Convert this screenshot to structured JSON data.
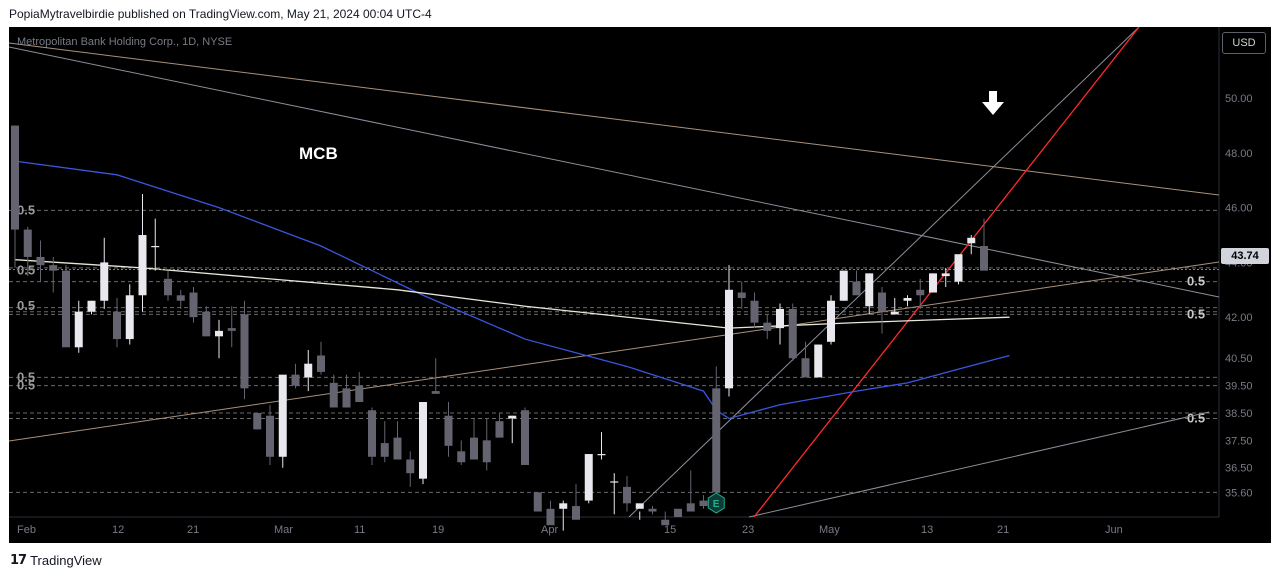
{
  "header": {
    "published": "PopiaMytravelbirdie published on TradingView.com, May 21, 2024 00:04 UTC-4"
  },
  "footer": {
    "logo_mark": "17",
    "brand": "TradingView"
  },
  "toolbar": {
    "currency": "USD"
  },
  "annotations": {
    "ticker_text": "MCB",
    "current_price_tag": "43.74"
  },
  "colors": {
    "background": "#000000",
    "up": "#e8e8ee",
    "down": "#646470",
    "ma_blue": "#3a56e0",
    "ma_white": "#e8e6da",
    "trend_red": "#ff2a2a",
    "trend_tan": "#a8927c",
    "price_line": "#ff4a4a"
  },
  "chart_data": {
    "type": "candlestick",
    "title": "Metropolitan Bank Holding Corp., 1D, NYSE",
    "ylim": [
      34.7,
      52.6
    ],
    "y_ticks": [
      "50.00",
      "48.00",
      "46.00",
      "44.00",
      "42.00",
      "40.50",
      "39.50",
      "38.50",
      "37.50",
      "36.50",
      "35.60"
    ],
    "x_ticks": [
      "Feb",
      "12",
      "21",
      "Mar",
      "11",
      "19",
      "Apr",
      "15",
      "23",
      "May",
      "13",
      "21",
      "Jun"
    ],
    "current_price": 43.74,
    "fib_labels": [
      {
        "text": "0.5",
        "price": 45.9,
        "side": "left"
      },
      {
        "text": "0.5",
        "price": 43.7,
        "side": "left"
      },
      {
        "text": "0.5",
        "price": 42.4,
        "side": "left"
      },
      {
        "text": "0.5",
        "price": 39.8,
        "side": "left"
      },
      {
        "text": "0.5",
        "price": 39.5,
        "side": "left"
      },
      {
        "text": "0.5",
        "price": 43.3,
        "side": "right"
      },
      {
        "text": "0.5",
        "price": 42.1,
        "side": "right"
      },
      {
        "text": "0.5",
        "price": 38.3,
        "side": "right"
      }
    ],
    "series": [
      {
        "name": "",
        "type": "candles",
        "values": [
          [
            49.0,
            49.0,
            43.8,
            45.2
          ],
          [
            45.2,
            45.3,
            43.5,
            44.2
          ],
          [
            44.2,
            44.8,
            43.3,
            43.9
          ],
          [
            43.9,
            44.2,
            42.9,
            43.7
          ],
          [
            43.7,
            43.9,
            40.9,
            40.9
          ],
          [
            40.9,
            42.6,
            40.7,
            42.2
          ],
          [
            42.2,
            42.6,
            42.1,
            42.6
          ],
          [
            42.6,
            44.9,
            42.3,
            44.0
          ],
          [
            42.2,
            42.7,
            40.9,
            41.2
          ],
          [
            41.2,
            43.2,
            41.0,
            42.8
          ],
          [
            42.8,
            46.5,
            42.2,
            45.0
          ],
          [
            44.6,
            45.6,
            43.7,
            44.6
          ],
          [
            43.4,
            43.7,
            42.6,
            42.8
          ],
          [
            42.8,
            43.0,
            42.3,
            42.6
          ],
          [
            42.9,
            43.1,
            41.8,
            42.0
          ],
          [
            42.2,
            42.4,
            41.3,
            41.3
          ],
          [
            41.3,
            41.9,
            40.5,
            41.5
          ],
          [
            41.6,
            42.4,
            40.9,
            41.5
          ],
          [
            42.1,
            42.6,
            39.0,
            39.4
          ],
          [
            38.5,
            38.5,
            37.9,
            37.9
          ],
          [
            38.4,
            38.8,
            36.6,
            36.9
          ],
          [
            36.9,
            39.6,
            36.5,
            39.9
          ],
          [
            39.9,
            40.3,
            39.4,
            39.5
          ],
          [
            39.8,
            40.8,
            39.3,
            40.3
          ],
          [
            40.6,
            41.1,
            39.9,
            40.0
          ],
          [
            39.6,
            39.9,
            38.7,
            38.7
          ],
          [
            39.4,
            39.9,
            39.0,
            38.7
          ],
          [
            39.5,
            40.0,
            39.4,
            38.9
          ],
          [
            38.6,
            38.7,
            36.6,
            36.9
          ],
          [
            37.4,
            38.2,
            36.7,
            36.9
          ],
          [
            37.6,
            38.2,
            37.2,
            36.8
          ],
          [
            36.8,
            37.1,
            35.8,
            36.3
          ],
          [
            36.1,
            38.9,
            35.9,
            38.9
          ],
          [
            39.3,
            40.5,
            39.2,
            39.2
          ],
          [
            38.4,
            38.9,
            36.9,
            37.3
          ],
          [
            37.1,
            37.5,
            36.6,
            36.7
          ],
          [
            37.6,
            38.3,
            37.2,
            36.8
          ],
          [
            37.5,
            38.3,
            36.4,
            36.7
          ],
          [
            38.2,
            38.5,
            37.7,
            37.6
          ],
          [
            38.3,
            38.4,
            37.4,
            38.4
          ],
          [
            38.6,
            38.7,
            36.7,
            36.6
          ],
          [
            35.6,
            35.6,
            34.9,
            34.9
          ],
          [
            35.0,
            35.3,
            35.0,
            34.4
          ],
          [
            35.0,
            35.3,
            34.2,
            35.2
          ],
          [
            35.1,
            35.9,
            34.8,
            34.6
          ],
          [
            35.3,
            37.0,
            35.2,
            37.0
          ],
          [
            37.0,
            37.8,
            36.8,
            37.0
          ],
          [
            36.0,
            36.3,
            34.8,
            36.0
          ],
          [
            35.8,
            36.2,
            34.9,
            35.2
          ],
          [
            35.0,
            34.9,
            34.6,
            35.2
          ],
          [
            35.0,
            35.1,
            34.8,
            34.9
          ],
          [
            34.6,
            34.9,
            34.6,
            34.4
          ],
          [
            35.0,
            35.0,
            34.8,
            34.7
          ],
          [
            35.2,
            36.4,
            35.0,
            34.9
          ],
          [
            35.3,
            35.5,
            35.0,
            35.1
          ],
          [
            39.4,
            40.2,
            35.6,
            35.6
          ],
          [
            39.4,
            43.9,
            39.1,
            43.0
          ],
          [
            42.9,
            43.3,
            42.3,
            42.7
          ],
          [
            42.6,
            42.9,
            41.6,
            41.8
          ],
          [
            41.8,
            42.1,
            41.2,
            41.5
          ],
          [
            41.6,
            42.5,
            41.0,
            42.3
          ],
          [
            42.3,
            42.5,
            40.4,
            40.5
          ],
          [
            40.5,
            41.1,
            40.1,
            39.8
          ],
          [
            39.8,
            40.6,
            39.9,
            41.0
          ],
          [
            41.1,
            42.8,
            41.0,
            42.6
          ],
          [
            42.6,
            43.7,
            42.6,
            43.7
          ],
          [
            43.3,
            43.7,
            42.8,
            42.8
          ],
          [
            42.4,
            43.6,
            42.1,
            43.6
          ],
          [
            42.9,
            43.1,
            41.4,
            42.2
          ],
          [
            42.1,
            42.7,
            42.1,
            42.2
          ],
          [
            42.6,
            42.8,
            42.4,
            42.7
          ],
          [
            43.0,
            43.4,
            42.3,
            42.8
          ],
          [
            42.9,
            43.6,
            42.9,
            43.6
          ],
          [
            43.5,
            43.8,
            43.1,
            43.6
          ],
          [
            43.3,
            44.2,
            43.2,
            44.3
          ],
          [
            44.7,
            45.0,
            44.3,
            44.9
          ],
          [
            44.6,
            45.6,
            44.1,
            43.7
          ]
        ]
      },
      {
        "name": "",
        "type": "line",
        "color": "blue",
        "values": [
          [
            0,
            47.7
          ],
          [
            8,
            47.2
          ],
          [
            16,
            46.0
          ],
          [
            24,
            44.6
          ],
          [
            32,
            42.8
          ],
          [
            40,
            41.2
          ],
          [
            48,
            40.2
          ],
          [
            54,
            39.3
          ],
          [
            55,
            38.6
          ],
          [
            56,
            38.3
          ],
          [
            60,
            38.8
          ],
          [
            66,
            39.3
          ],
          [
            70,
            39.6
          ],
          [
            74,
            40.1
          ],
          [
            78,
            40.6
          ]
        ]
      },
      {
        "name": "",
        "type": "line",
        "color": "white",
        "values": [
          [
            0,
            44.1
          ],
          [
            10,
            43.8
          ],
          [
            20,
            43.4
          ],
          [
            30,
            43.0
          ],
          [
            40,
            42.4
          ],
          [
            50,
            41.9
          ],
          [
            56,
            41.6
          ],
          [
            66,
            41.8
          ],
          [
            72,
            41.9
          ],
          [
            78,
            42.0
          ]
        ]
      }
    ]
  }
}
